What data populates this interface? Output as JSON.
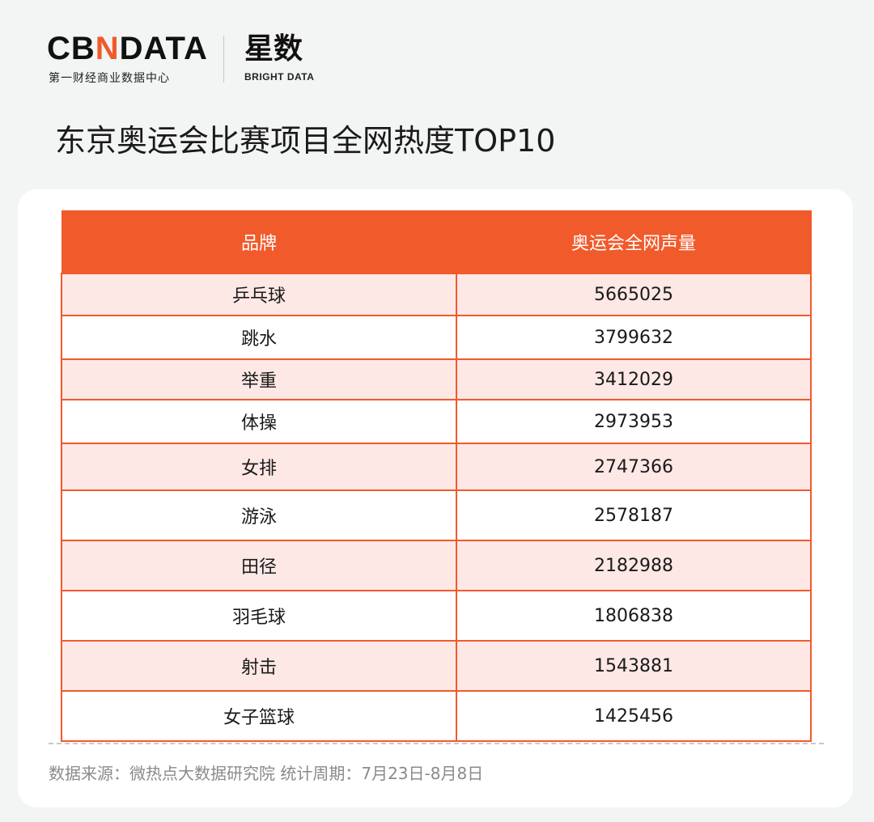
{
  "header": {
    "logo_cbn_prefix": "CB",
    "logo_cbn_accent": "N",
    "logo_cbn_suffix": "DATA",
    "logo_cbn_subtitle": "第一财经商业数据中心",
    "logo_xs": "星数",
    "logo_xs_subtitle": "BRIGHT DATA"
  },
  "title": "东京奥运会比赛项目全网热度TOP10",
  "colors": {
    "accent": "#f15a2b",
    "row_tint": "#fde8e6",
    "background": "#f3f4f4"
  },
  "chart_data": {
    "type": "table",
    "columns": [
      "品牌",
      "奥运会全网声量"
    ],
    "rows": [
      [
        "乒乓球",
        "5665025"
      ],
      [
        "跳水",
        "3799632"
      ],
      [
        "举重",
        "3412029"
      ],
      [
        "体操",
        "2973953"
      ],
      [
        "女排",
        "2747366"
      ],
      [
        "游泳",
        "2578187"
      ],
      [
        "田径",
        "2182988"
      ],
      [
        "羽毛球",
        "1806838"
      ],
      [
        "射击",
        "1543881"
      ],
      [
        "女子篮球",
        "1425456"
      ]
    ]
  },
  "footer": {
    "source": "数据来源：微热点大数据研究院  统计周期：7月23日-8月8日"
  }
}
